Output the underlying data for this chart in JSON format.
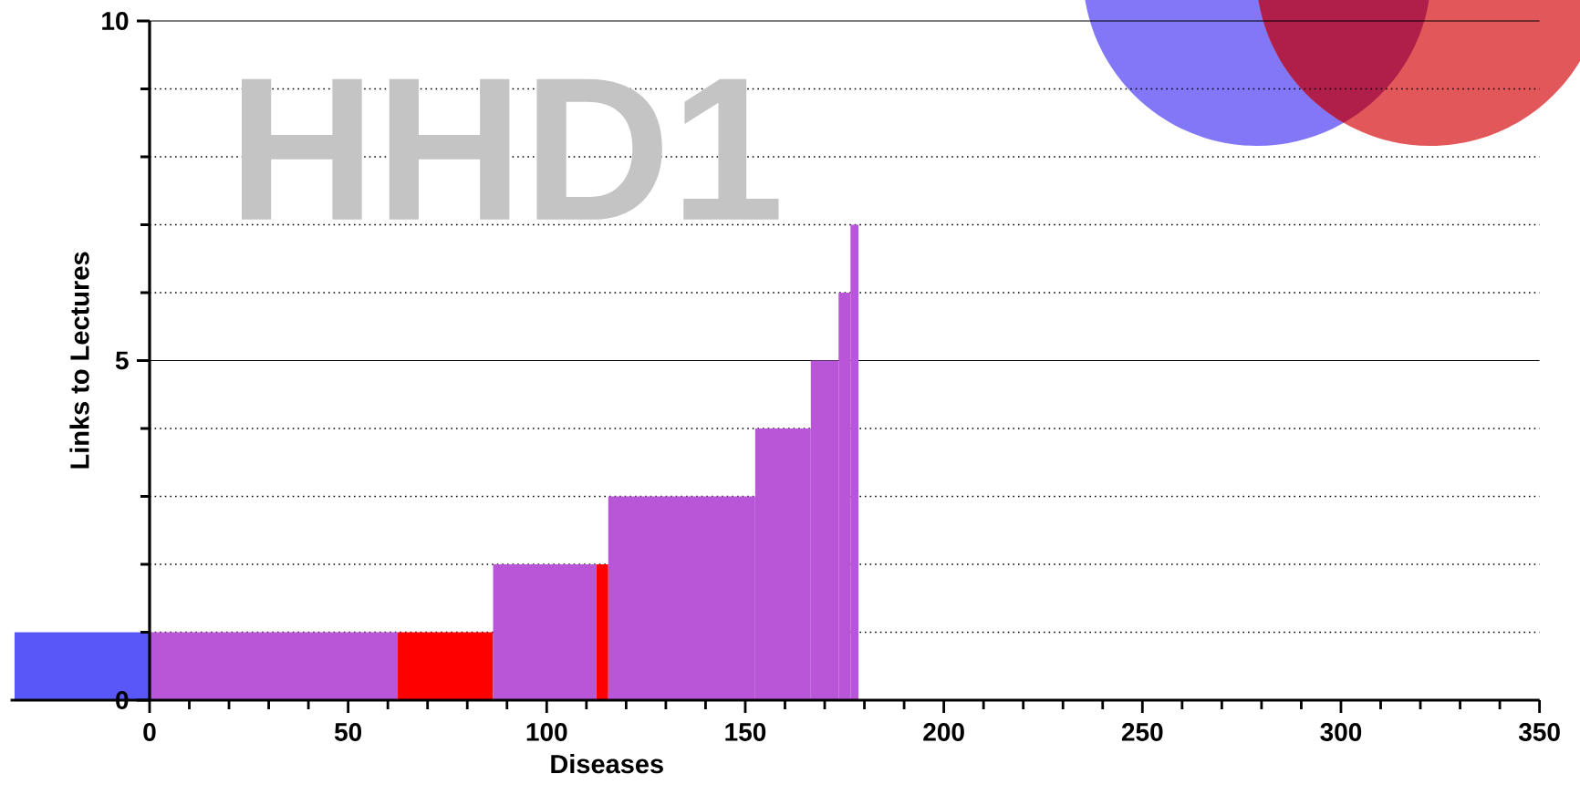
{
  "chart_data": {
    "type": "histogram",
    "xlabel": "Diseases",
    "ylabel": "Links to Lectures",
    "annotations": [
      "HHD1"
    ],
    "bins": [
      -34,
      0,
      62.5,
      86.5,
      112.5,
      115.5,
      152.5,
      166.5,
      173.5,
      176.5,
      178.5
    ],
    "values": [
      1,
      1,
      1,
      2,
      2,
      3,
      4,
      5,
      6,
      7
    ],
    "colors": [
      "#5a57f9",
      "#b856d7",
      "#ff0000",
      "#b856d7",
      "#ff0000",
      "#b856d7",
      "#b856d7",
      "#b856d7",
      "#b856d7",
      "#b856d7"
    ],
    "xlim": [
      -35,
      350
    ],
    "xticks": [
      0,
      {
        "value": 10,
        "label": null
      },
      {
        "value": 20,
        "label": null
      },
      {
        "value": 30,
        "label": null
      },
      {
        "value": 40,
        "label": null
      },
      50,
      {
        "value": 60,
        "label": null
      },
      {
        "value": 70,
        "label": null
      },
      {
        "value": 80,
        "label": null
      },
      {
        "value": 90,
        "label": null
      },
      100,
      {
        "value": 110,
        "label": null
      },
      {
        "value": 120,
        "label": null
      },
      {
        "value": 130,
        "label": null
      },
      {
        "value": 140,
        "label": null
      },
      150,
      {
        "value": 160,
        "label": null
      },
      {
        "value": 170,
        "label": null
      },
      {
        "value": 180,
        "label": null
      },
      {
        "value": 190,
        "label": null
      },
      200,
      {
        "value": 210,
        "label": null
      },
      {
        "value": 220,
        "label": null
      },
      {
        "value": 230,
        "label": null
      },
      {
        "value": 240,
        "label": null
      },
      250,
      {
        "value": 260,
        "label": null
      },
      {
        "value": 270,
        "label": null
      },
      {
        "value": 280,
        "label": null
      },
      {
        "value": 290,
        "label": null
      },
      300,
      {
        "value": 310,
        "label": null
      },
      {
        "value": 320,
        "label": null
      },
      {
        "value": 330,
        "label": null
      },
      {
        "value": 340,
        "label": null
      },
      350
    ],
    "ylim": [
      0,
      10
    ],
    "yticks": [
      0,
      {
        "value": 1,
        "label": null
      },
      {
        "value": 2,
        "label": null
      },
      {
        "value": 3,
        "label": null
      },
      {
        "value": 4,
        "label": null
      },
      5,
      {
        "value": 6,
        "label": null
      },
      {
        "value": 7,
        "label": null
      },
      {
        "value": 8,
        "label": null
      },
      {
        "value": 9,
        "label": null
      },
      10
    ],
    "ref_lines": [
      {
        "axis": "y",
        "value": 5,
        "line_style": "solid",
        "color": "#000000"
      }
    ],
    "grid": "y"
  }
}
